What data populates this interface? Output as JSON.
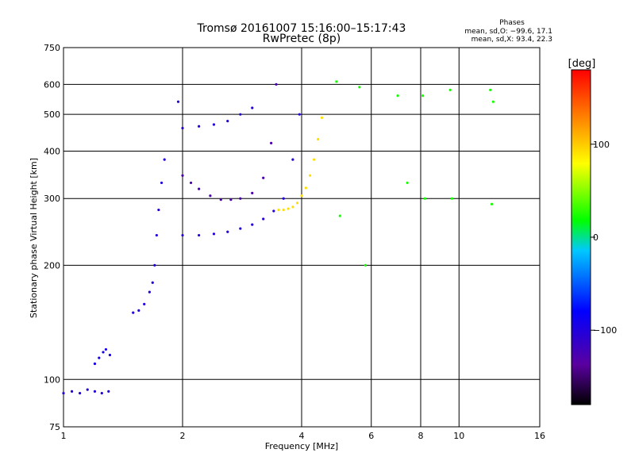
{
  "header": {
    "title": "Tromsø 20161007 15:16:00–15:17:43",
    "subtitle": "RwPretec (8p)",
    "info_title": "Phases",
    "info_line1": "mean, sd,O: −99.6, 17.1",
    "info_line2": "mean, sd,X:  93.4, 22.3"
  },
  "chart_data": {
    "type": "scatter",
    "xlabel": "Frequency [MHz]",
    "ylabel": "Stationary phase Virtual Height [km]",
    "x_scale": "log",
    "y_scale": "log",
    "xlim": [
      1,
      16
    ],
    "ylim": [
      75,
      750
    ],
    "x_ticks": [
      1,
      2,
      4,
      6,
      8,
      10,
      16
    ],
    "x_tick_labels": [
      "1",
      "2",
      "4",
      "6",
      "8",
      "10",
      "16"
    ],
    "y_ticks": [
      75,
      100,
      200,
      300,
      400,
      500,
      600,
      750
    ],
    "y_tick_labels": [
      "75",
      "100",
      "200",
      "300",
      "400",
      "500",
      "600",
      "750"
    ],
    "grid": true,
    "colorbar": {
      "label": "[deg]",
      "range": [
        -180,
        180
      ],
      "ticks": [
        100,
        0,
        -100
      ],
      "tick_labels": [
        "100",
        "0",
        "−100"
      ],
      "colors": [
        "#000000",
        "#5a00a0",
        "#0000ff",
        "#00c8ff",
        "#00ff00",
        "#ffff00",
        "#ff8000",
        "#ff0000"
      ]
    },
    "series": [
      {
        "x": [
          1.0,
          1.05,
          1.1,
          1.15,
          1.2,
          1.25,
          1.3
        ],
        "y": [
          92,
          93,
          92,
          94,
          93,
          92,
          93
        ],
        "phase": -100
      },
      {
        "x": [
          1.2,
          1.23,
          1.26,
          1.28,
          1.31
        ],
        "y": [
          110,
          114,
          118,
          120,
          116
        ],
        "phase": -90
      },
      {
        "x": [
          1.5,
          1.55,
          1.6,
          1.65,
          1.68,
          1.7,
          1.72,
          1.74,
          1.77,
          1.8
        ],
        "y": [
          150,
          152,
          158,
          170,
          180,
          200,
          240,
          280,
          330,
          380
        ],
        "phase": -95
      },
      {
        "x": [
          1.95,
          2.0,
          2.2,
          2.4,
          2.6,
          2.8,
          3.0
        ],
        "y": [
          540,
          460,
          465,
          470,
          480,
          500,
          520
        ],
        "phase": -100
      },
      {
        "x": [
          2.0,
          2.1,
          2.2,
          2.35,
          2.5,
          2.65,
          2.8,
          3.0,
          3.2,
          3.35,
          3.45
        ],
        "y": [
          345,
          330,
          318,
          305,
          298,
          298,
          300,
          310,
          340,
          420,
          600
        ],
        "phase": -120
      },
      {
        "x": [
          2.0,
          2.2,
          2.4,
          2.6,
          2.8,
          3.0,
          3.2,
          3.4,
          3.6,
          3.8,
          3.95
        ],
        "y": [
          240,
          240,
          242,
          245,
          250,
          256,
          265,
          278,
          300,
          380,
          500
        ],
        "phase": -98
      },
      {
        "x": [
          3.5,
          3.6,
          3.7,
          3.8,
          3.9,
          4.0,
          4.1,
          4.2,
          4.3,
          4.4,
          4.5
        ],
        "y": [
          280,
          280,
          282,
          285,
          292,
          305,
          320,
          345,
          380,
          430,
          490
        ],
        "phase": 90
      },
      {
        "x": [
          4.9,
          5.0,
          5.6,
          5.8,
          7.0,
          7.4,
          8.1,
          8.2,
          9.5,
          9.6,
          12.0,
          12.1,
          12.2
        ],
        "y": [
          610,
          270,
          590,
          200,
          560,
          330,
          560,
          300,
          580,
          300,
          580,
          290,
          540
        ],
        "phase": 30
      }
    ]
  }
}
